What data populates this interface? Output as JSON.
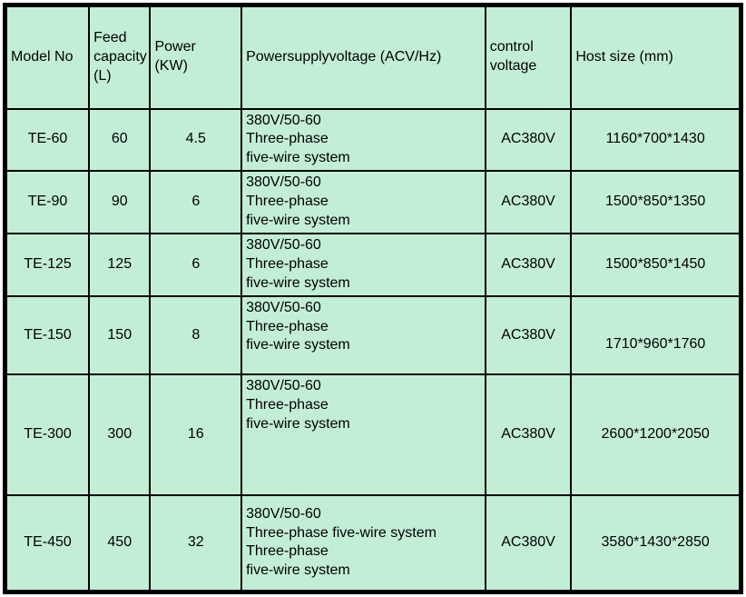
{
  "colors": {
    "cell_background": "#c3eed6",
    "border": "#000000",
    "text": "#000000",
    "page_background": "#ffffff"
  },
  "table": {
    "columns": [
      {
        "key": "model",
        "label": "Model No"
      },
      {
        "key": "feed",
        "label": "Feed\ncapacity\n(L)"
      },
      {
        "key": "power",
        "label": "Power\n(KW)"
      },
      {
        "key": "voltage",
        "label": "Powersupplyvoltage (ACV/Hz)"
      },
      {
        "key": "control",
        "label": "control\nvoltage"
      },
      {
        "key": "host",
        "label": "Host size (mm)"
      }
    ],
    "rows": [
      {
        "model": "TE-60",
        "feed": "60",
        "power": "4.5",
        "voltage": "380V/50-60\nThree-phase\nfive-wire system",
        "control": "AC380V",
        "host": "1160*700*1430"
      },
      {
        "model": "TE-90",
        "feed": "90",
        "power": "6",
        "voltage": "380V/50-60\nThree-phase\nfive-wire system",
        "control": "AC380V",
        "host": "1500*850*1350"
      },
      {
        "model": "TE-125",
        "feed": "125",
        "power": "6",
        "voltage": "380V/50-60\nThree-phase\nfive-wire system",
        "control": "AC380V",
        "host": "1500*850*1450"
      },
      {
        "model": "TE-150",
        "feed": "150",
        "power": "8",
        "voltage": "380V/50-60\nThree-phase\nfive-wire system",
        "control": "AC380V",
        "host": "1710*960*1760"
      },
      {
        "model": "TE-300",
        "feed": "300",
        "power": "16",
        "voltage": "380V/50-60\nThree-phase\nfive-wire system",
        "control": "AC380V",
        "host": "2600*1200*2050"
      },
      {
        "model": "TE-450",
        "feed": "450",
        "power": "32",
        "voltage": "380V/50-60\nThree-phase five-wire system\nThree-phase\nfive-wire system",
        "control": "AC380V",
        "host": "3580*1430*2850"
      }
    ]
  }
}
